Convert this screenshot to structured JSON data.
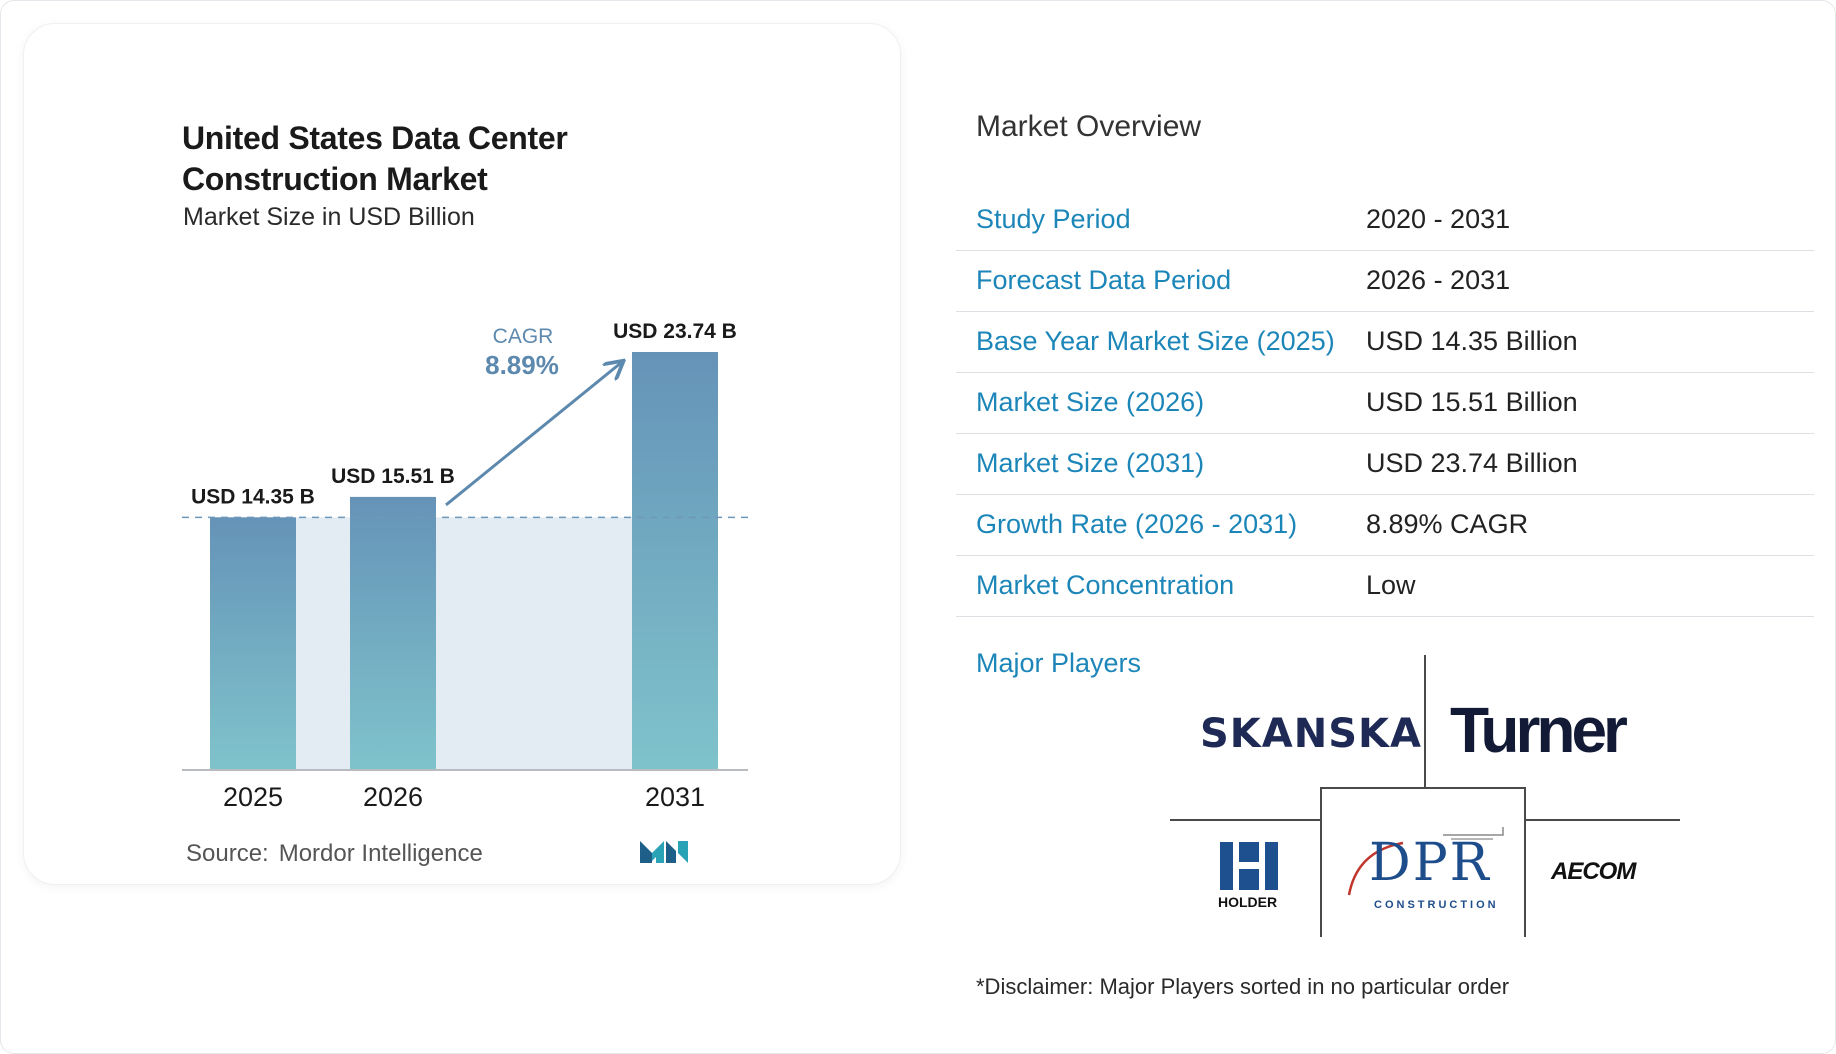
{
  "chart_data": {
    "type": "bar",
    "title": "United States Data Center Construction Market",
    "subtitle": "Market Size in USD Billion",
    "categories": [
      "2025",
      "2026",
      "2031"
    ],
    "values": [
      14.35,
      15.51,
      23.74
    ],
    "data_labels": [
      "USD 14.35 B",
      "USD 15.51 B",
      "USD 23.74 B"
    ],
    "cagr_label": "CAGR",
    "cagr_value": "8.89%",
    "ylim": [
      0,
      23.74
    ],
    "grid": false,
    "colors": {
      "bar_top": "#6593b8",
      "bar_bottom": "#7fc3cb",
      "band": "#e3ebf3",
      "arrow": "#5c89ad",
      "cagr": "#5c89ad"
    }
  },
  "source": {
    "label": "Source:",
    "value": "Mordor Intelligence"
  },
  "overview": {
    "title": "Market Overview",
    "rows": [
      {
        "label": "Study Period",
        "value": "2020 - 2031"
      },
      {
        "label": "Forecast Data Period",
        "value": "2026 - 2031"
      },
      {
        "label": "Base Year Market Size (2025)",
        "value": "USD 14.35 Billion"
      },
      {
        "label": "Market Size (2026)",
        "value": "USD 15.51 Billion"
      },
      {
        "label": "Market Size (2031)",
        "value": "USD 23.74 Billion"
      },
      {
        "label": "Growth Rate (2026 - 2031)",
        "value": "8.89% CAGR"
      },
      {
        "label": "Market Concentration",
        "value": "Low"
      }
    ]
  },
  "major_players": {
    "label": "Major Players",
    "logos": {
      "skanska": "SKANSKA",
      "turner": "Turner",
      "holder": "HOLDER",
      "dpr": "DPR",
      "dpr_sub": "CONSTRUCTION",
      "aecom": "AECOM"
    }
  },
  "disclaimer": "*Disclaimer: Major Players sorted in no particular order",
  "accent_color": "#1d86b9"
}
